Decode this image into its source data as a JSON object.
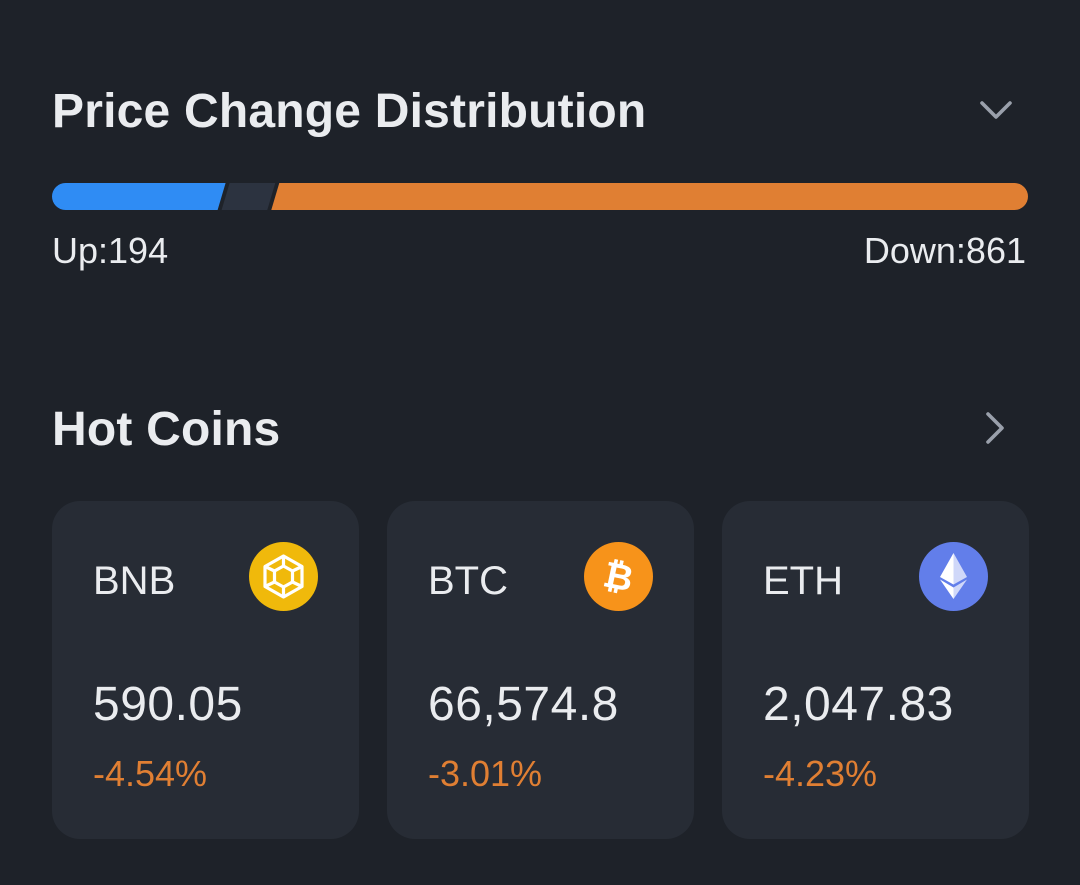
{
  "price_distribution": {
    "title": "Price Change Distribution",
    "up_label": "Up:194",
    "down_label": "Down:861",
    "up_count": 194,
    "down_count": 861,
    "colors": {
      "up": "#2f8cf4",
      "neutral": "#2c3340",
      "down": "#e07f33"
    },
    "toggle_icon": "chevron-down-icon"
  },
  "hot_coins": {
    "title": "Hot Coins",
    "more_icon": "chevron-right-icon",
    "coins": [
      {
        "symbol": "BNB",
        "price": "590.05",
        "change": "-4.54%",
        "icon": "bnb-logo-icon",
        "icon_color": "#f0b90b"
      },
      {
        "symbol": "BTC",
        "price": "66,574.8",
        "change": "-3.01%",
        "icon": "btc-logo-icon",
        "icon_color": "#f7931a"
      },
      {
        "symbol": "ETH",
        "price": "2,047.83",
        "change": "-4.23%",
        "icon": "eth-logo-icon",
        "icon_color": "#627eea"
      }
    ],
    "change_color": "#e07f33"
  }
}
